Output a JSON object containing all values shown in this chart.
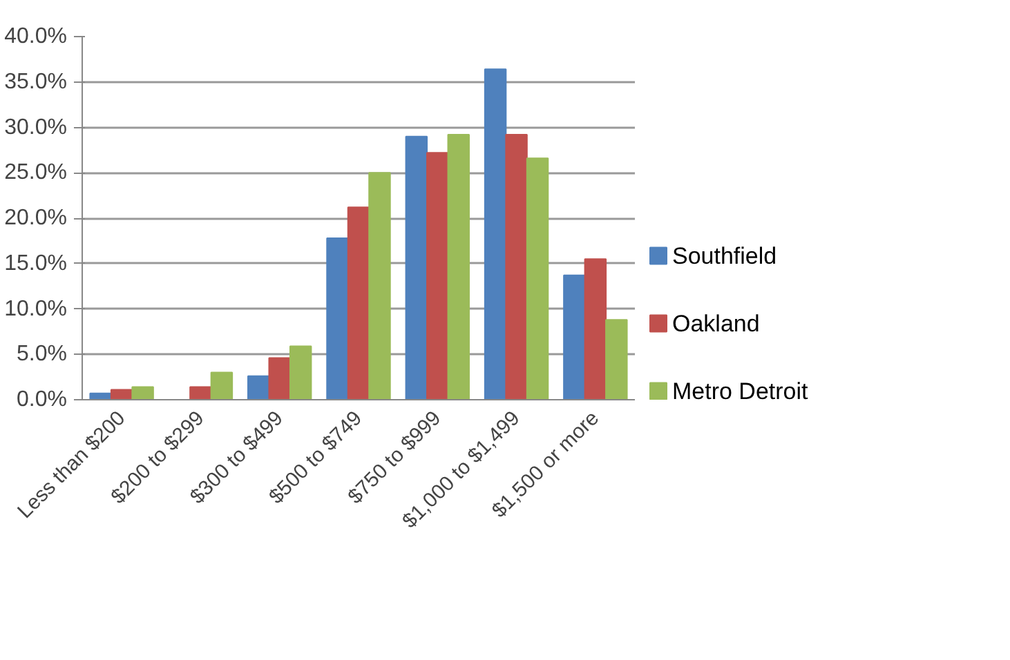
{
  "chart_data": {
    "type": "bar",
    "categories": [
      "Less than $200",
      "$200 to $299",
      "$300 to $499",
      "$500 to $749",
      "$750 to $999",
      "$1,000 to $1,499",
      "$1,500 or more"
    ],
    "series": [
      {
        "name": "Southfield",
        "color": "#4f81bd",
        "values": [
          0.7,
          0,
          2.6,
          17.8,
          29.0,
          36.4,
          13.7
        ]
      },
      {
        "name": "Oakland",
        "color": "#c0504d",
        "values": [
          1.1,
          1.4,
          4.6,
          21.2,
          27.2,
          29.2,
          15.5
        ]
      },
      {
        "name": "Metro Detroit",
        "color": "#9bbb59",
        "values": [
          1.4,
          3.0,
          5.9,
          25.0,
          29.2,
          26.6,
          8.8
        ]
      }
    ],
    "ylim": [
      0,
      40
    ],
    "yticks": [
      {
        "value": 0,
        "label": "0.0%"
      },
      {
        "value": 5,
        "label": "5.0%"
      },
      {
        "value": 10,
        "label": "10.0%"
      },
      {
        "value": 15,
        "label": "15.0%"
      },
      {
        "value": 20,
        "label": "20.0%"
      },
      {
        "value": 25,
        "label": "25.0%"
      },
      {
        "value": 30,
        "label": "30.0%"
      },
      {
        "value": 35,
        "label": "35.0%"
      },
      {
        "value": 40,
        "label": "40.0%"
      }
    ],
    "grid": "y",
    "legend": "right"
  }
}
